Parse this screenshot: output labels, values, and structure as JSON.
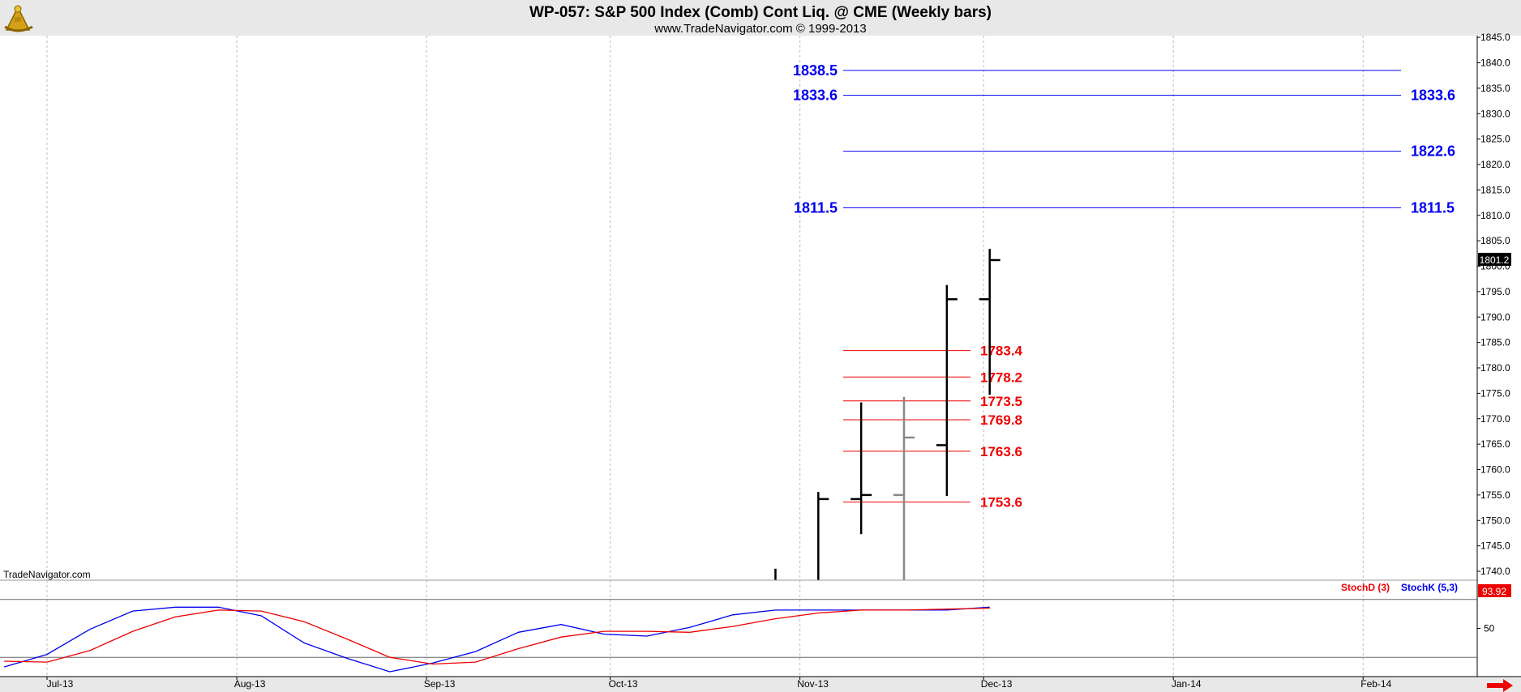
{
  "title": "WP-057:  S&P 500 Index (Comb) Cont Liq. @ CME  (Weekly bars)",
  "subtitle": "www.TradeNavigator.com © 1999-2013",
  "watermark": "TradeNavigator.com",
  "colors": {
    "blue": "#0000ee",
    "red": "#ee0000",
    "bar": "#000000",
    "bar_gray": "#888888",
    "header_bg": "#e8e8e8",
    "current_price_bg": "#000000",
    "stoch_value_bg": "#ee0000"
  },
  "icons": {
    "logo": "sextant-logo-icon",
    "scroll": "right-arrow-icon"
  },
  "chart_data": [
    {
      "type": "ohlc",
      "name": "price",
      "x_labels": [
        "Jul-13",
        "Aug-13",
        "Sep-13",
        "Oct-13",
        "Nov-13",
        "Dec-13",
        "Jan-14",
        "Feb-14"
      ],
      "ylim": [
        1737,
        1846
      ],
      "y_ticks": [
        "1740.0",
        "1745.0",
        "1750.0",
        "1755.0",
        "1760.0",
        "1765.0",
        "1770.0",
        "1775.0",
        "1780.0",
        "1785.0",
        "1790.0",
        "1795.0",
        "1800.0",
        "1805.0",
        "1810.0",
        "1815.0",
        "1820.0",
        "1825.0",
        "1830.0",
        "1835.0",
        "1840.0",
        "1845.0"
      ],
      "grid": true,
      "current_price": "1801.2",
      "bars": [
        {
          "date": "2013-10-28",
          "open": null,
          "high": 1740.5,
          "low": 1737.0,
          "close": null,
          "color": "#000000"
        },
        {
          "date": "2013-11-04",
          "open": null,
          "high": 1755.6,
          "low": 1737.0,
          "close": 1754.2,
          "color": "#000000"
        },
        {
          "date": "2013-11-11",
          "open": 1754.2,
          "high": 1773.2,
          "low": 1747.3,
          "close": 1755.0,
          "color": "#000000"
        },
        {
          "date": "2013-11-18",
          "open": 1755.0,
          "high": 1774.3,
          "low": 1737.0,
          "close": 1766.3,
          "color": "#888888"
        },
        {
          "date": "2013-11-25",
          "open": 1764.8,
          "high": 1796.3,
          "low": 1754.8,
          "close": 1793.5,
          "color": "#000000"
        },
        {
          "date": "2013-12-02",
          "open": 1793.5,
          "high": 1803.4,
          "low": 1774.7,
          "close": 1801.2,
          "color": "#000000"
        }
      ],
      "blue_levels": [
        {
          "value": 1838.5,
          "left_label": "1838.5",
          "right_label": ""
        },
        {
          "value": 1833.6,
          "left_label": "1833.6",
          "right_label": "1833.6"
        },
        {
          "value": 1822.6,
          "left_label": "",
          "right_label": "1822.6"
        },
        {
          "value": 1811.5,
          "left_label": "1811.5",
          "right_label": "1811.5"
        }
      ],
      "red_levels": [
        {
          "value": 1783.4,
          "label": "1783.4"
        },
        {
          "value": 1778.2,
          "label": "1778.2"
        },
        {
          "value": 1773.5,
          "label": "1773.5"
        },
        {
          "value": 1769.8,
          "label": "1769.8"
        },
        {
          "value": 1763.6,
          "label": "1763.6"
        },
        {
          "value": 1753.6,
          "label": "1753.6"
        }
      ]
    },
    {
      "type": "line",
      "name": "stochastic",
      "ylim": [
        0,
        100
      ],
      "y_ticks": [
        "50"
      ],
      "reference_lines": [
        80,
        20
      ],
      "current_value": "93.92",
      "legend": [
        "StochD (3)",
        "StochK (5,3)"
      ],
      "series": [
        {
          "name": "StochK (5,3)",
          "color": "#0000ee",
          "x": [
            "2013-06-24",
            "2013-07-01",
            "2013-07-08",
            "2013-07-15",
            "2013-07-22",
            "2013-07-29",
            "2013-08-05",
            "2013-08-12",
            "2013-08-19",
            "2013-08-26",
            "2013-09-02",
            "2013-09-09",
            "2013-09-16",
            "2013-09-23",
            "2013-09-30",
            "2013-10-07",
            "2013-10-14",
            "2013-10-21",
            "2013-10-28",
            "2013-11-04",
            "2013-11-11",
            "2013-11-18",
            "2013-11-25",
            "2013-12-02"
          ],
          "values": [
            10,
            23,
            49,
            68,
            72,
            72,
            63,
            35,
            19,
            5,
            14,
            26,
            46,
            54,
            44,
            42,
            51,
            64,
            69,
            69,
            69,
            69,
            69,
            72
          ]
        },
        {
          "name": "StochD (3)",
          "color": "#ee0000",
          "x": [
            "2013-06-24",
            "2013-07-01",
            "2013-07-08",
            "2013-07-15",
            "2013-07-22",
            "2013-07-29",
            "2013-08-05",
            "2013-08-12",
            "2013-08-19",
            "2013-08-26",
            "2013-09-02",
            "2013-09-09",
            "2013-09-16",
            "2013-09-23",
            "2013-09-30",
            "2013-10-07",
            "2013-10-14",
            "2013-10-21",
            "2013-10-28",
            "2013-11-04",
            "2013-11-11",
            "2013-11-18",
            "2013-11-25",
            "2013-12-02"
          ],
          "values": [
            16,
            15,
            27,
            47,
            62,
            69,
            68,
            57,
            39,
            20,
            13,
            15,
            29,
            41,
            47,
            47,
            46,
            52,
            60,
            66,
            69,
            69,
            70,
            71
          ]
        }
      ]
    }
  ]
}
